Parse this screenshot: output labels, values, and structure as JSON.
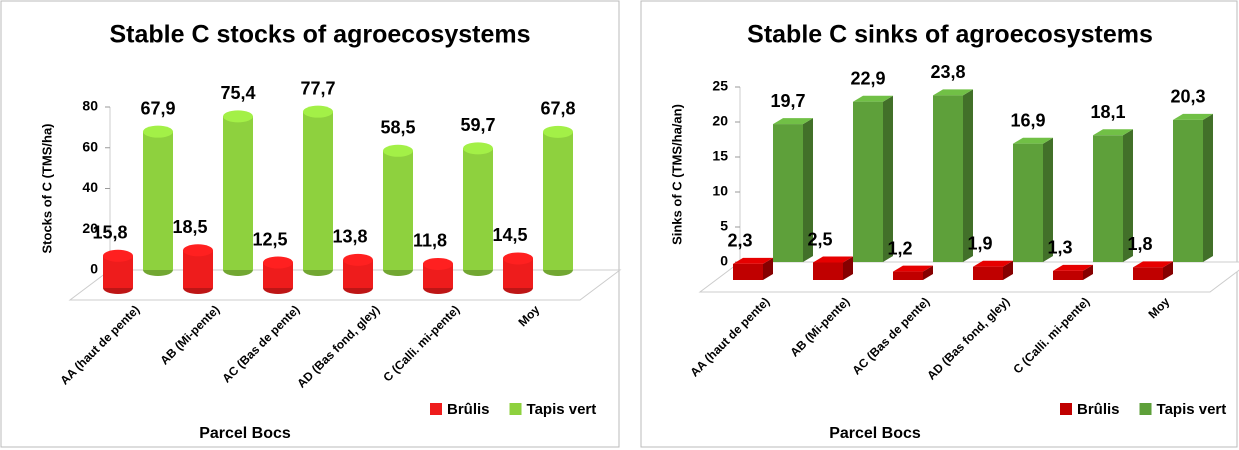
{
  "chart_data": [
    {
      "type": "bar",
      "bar_shape": "cylinder",
      "title": "Stable C stocks of agroecosystems",
      "ylabel": "Stocks of C (TMS/ha)",
      "xlabel": "Parcel Bocs",
      "categories": [
        "AA (haut de pente)",
        "AB (Mi-pente)",
        "AC (Bas de pente)",
        "AD (Bas fond, gley)",
        "C (Calli. mi-pente)",
        "Moy"
      ],
      "series": [
        {
          "name": "Brûlis",
          "color": "#ee1c1c",
          "values": [
            15.8,
            18.5,
            12.5,
            13.8,
            11.8,
            14.5
          ],
          "value_labels": [
            "15,8",
            "18,5",
            "12,5",
            "13,8",
            "11,8",
            "14,5"
          ]
        },
        {
          "name": "Tapis vert",
          "color": "#8ed13e",
          "values": [
            67.9,
            75.4,
            77.7,
            58.5,
            59.7,
            67.8
          ],
          "value_labels": [
            "67,9",
            "75,4",
            "77,7",
            "58,5",
            "59,7",
            "67,8"
          ]
        }
      ],
      "ylim": [
        0,
        80
      ],
      "yticks": [
        0,
        20,
        40,
        60,
        80
      ],
      "legend": "bottom-right"
    },
    {
      "type": "bar",
      "bar_shape": "box",
      "title": "Stable C sinks of agroecosystems",
      "ylabel": "Sinks of C (TMS/ha/an)",
      "xlabel": "Parcel Bocs",
      "categories": [
        "AA (haut de pente)",
        "AB (Mi-pente)",
        "AC (Bas de pente)",
        "AD (Bas fond, gley)",
        "C (Calli. mi-pente)",
        "Moy"
      ],
      "series": [
        {
          "name": "Brûlis",
          "color": "#c00000",
          "values": [
            2.3,
            2.5,
            1.2,
            1.9,
            1.3,
            1.8
          ],
          "value_labels": [
            "2,3",
            "2,5",
            "1,2",
            "1,9",
            "1,3",
            "1,8"
          ]
        },
        {
          "name": "Tapis vert",
          "color": "#5ea03a",
          "values": [
            19.7,
            22.9,
            23.8,
            16.9,
            18.1,
            20.3
          ],
          "value_labels": [
            "19,7",
            "22,9",
            "23,8",
            "16,9",
            "18,1",
            "20,3"
          ]
        }
      ],
      "ylim": [
        0,
        25
      ],
      "yticks": [
        0,
        5,
        10,
        15,
        20,
        25
      ],
      "legend": "bottom-right"
    }
  ]
}
